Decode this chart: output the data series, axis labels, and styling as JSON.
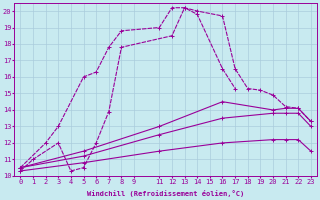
{
  "background_color": "#c8eaf0",
  "grid_color": "#aaccdd",
  "line_color": "#990099",
  "xlabel": "Windchill (Refroidissement éolien,°C)",
  "xlim": [
    -0.5,
    23.5
  ],
  "ylim": [
    10,
    20.5
  ],
  "xticks": [
    0,
    1,
    2,
    3,
    4,
    5,
    6,
    7,
    8,
    9,
    11,
    12,
    13,
    14,
    15,
    16,
    17,
    18,
    19,
    20,
    21,
    22,
    23
  ],
  "yticks": [
    10,
    11,
    12,
    13,
    14,
    15,
    16,
    17,
    18,
    19,
    20
  ],
  "series": [
    {
      "x": [
        0,
        2,
        3,
        5,
        6,
        7,
        8,
        11,
        12,
        13,
        14,
        16,
        17
      ],
      "y": [
        10.5,
        12.0,
        13.0,
        16.0,
        16.3,
        17.8,
        18.8,
        19.0,
        20.2,
        20.2,
        19.8,
        16.5,
        15.3
      ],
      "marker": true
    },
    {
      "x": [
        0,
        1,
        3,
        4,
        5,
        6,
        7,
        8,
        12,
        13,
        14,
        16,
        17,
        18,
        19,
        20,
        21,
        22,
        23
      ],
      "y": [
        10.3,
        11.0,
        12.0,
        10.3,
        10.5,
        12.0,
        13.9,
        17.8,
        18.5,
        20.2,
        20.0,
        19.7,
        16.5,
        15.3,
        15.2,
        14.9,
        14.2,
        14.1,
        13.3
      ],
      "marker": true
    },
    {
      "x": [
        0,
        5,
        11,
        16,
        20,
        21,
        22,
        23
      ],
      "y": [
        10.5,
        11.5,
        13.0,
        14.5,
        14.0,
        14.1,
        14.1,
        13.3
      ],
      "marker": true
    },
    {
      "x": [
        0,
        5,
        11,
        16,
        20,
        21,
        22,
        23
      ],
      "y": [
        10.5,
        11.2,
        12.5,
        13.5,
        13.8,
        13.8,
        13.8,
        13.0
      ],
      "marker": true
    },
    {
      "x": [
        0,
        5,
        11,
        16,
        20,
        21,
        22,
        23
      ],
      "y": [
        10.3,
        10.8,
        11.5,
        12.0,
        12.2,
        12.2,
        12.2,
        11.5
      ],
      "marker": true
    }
  ]
}
